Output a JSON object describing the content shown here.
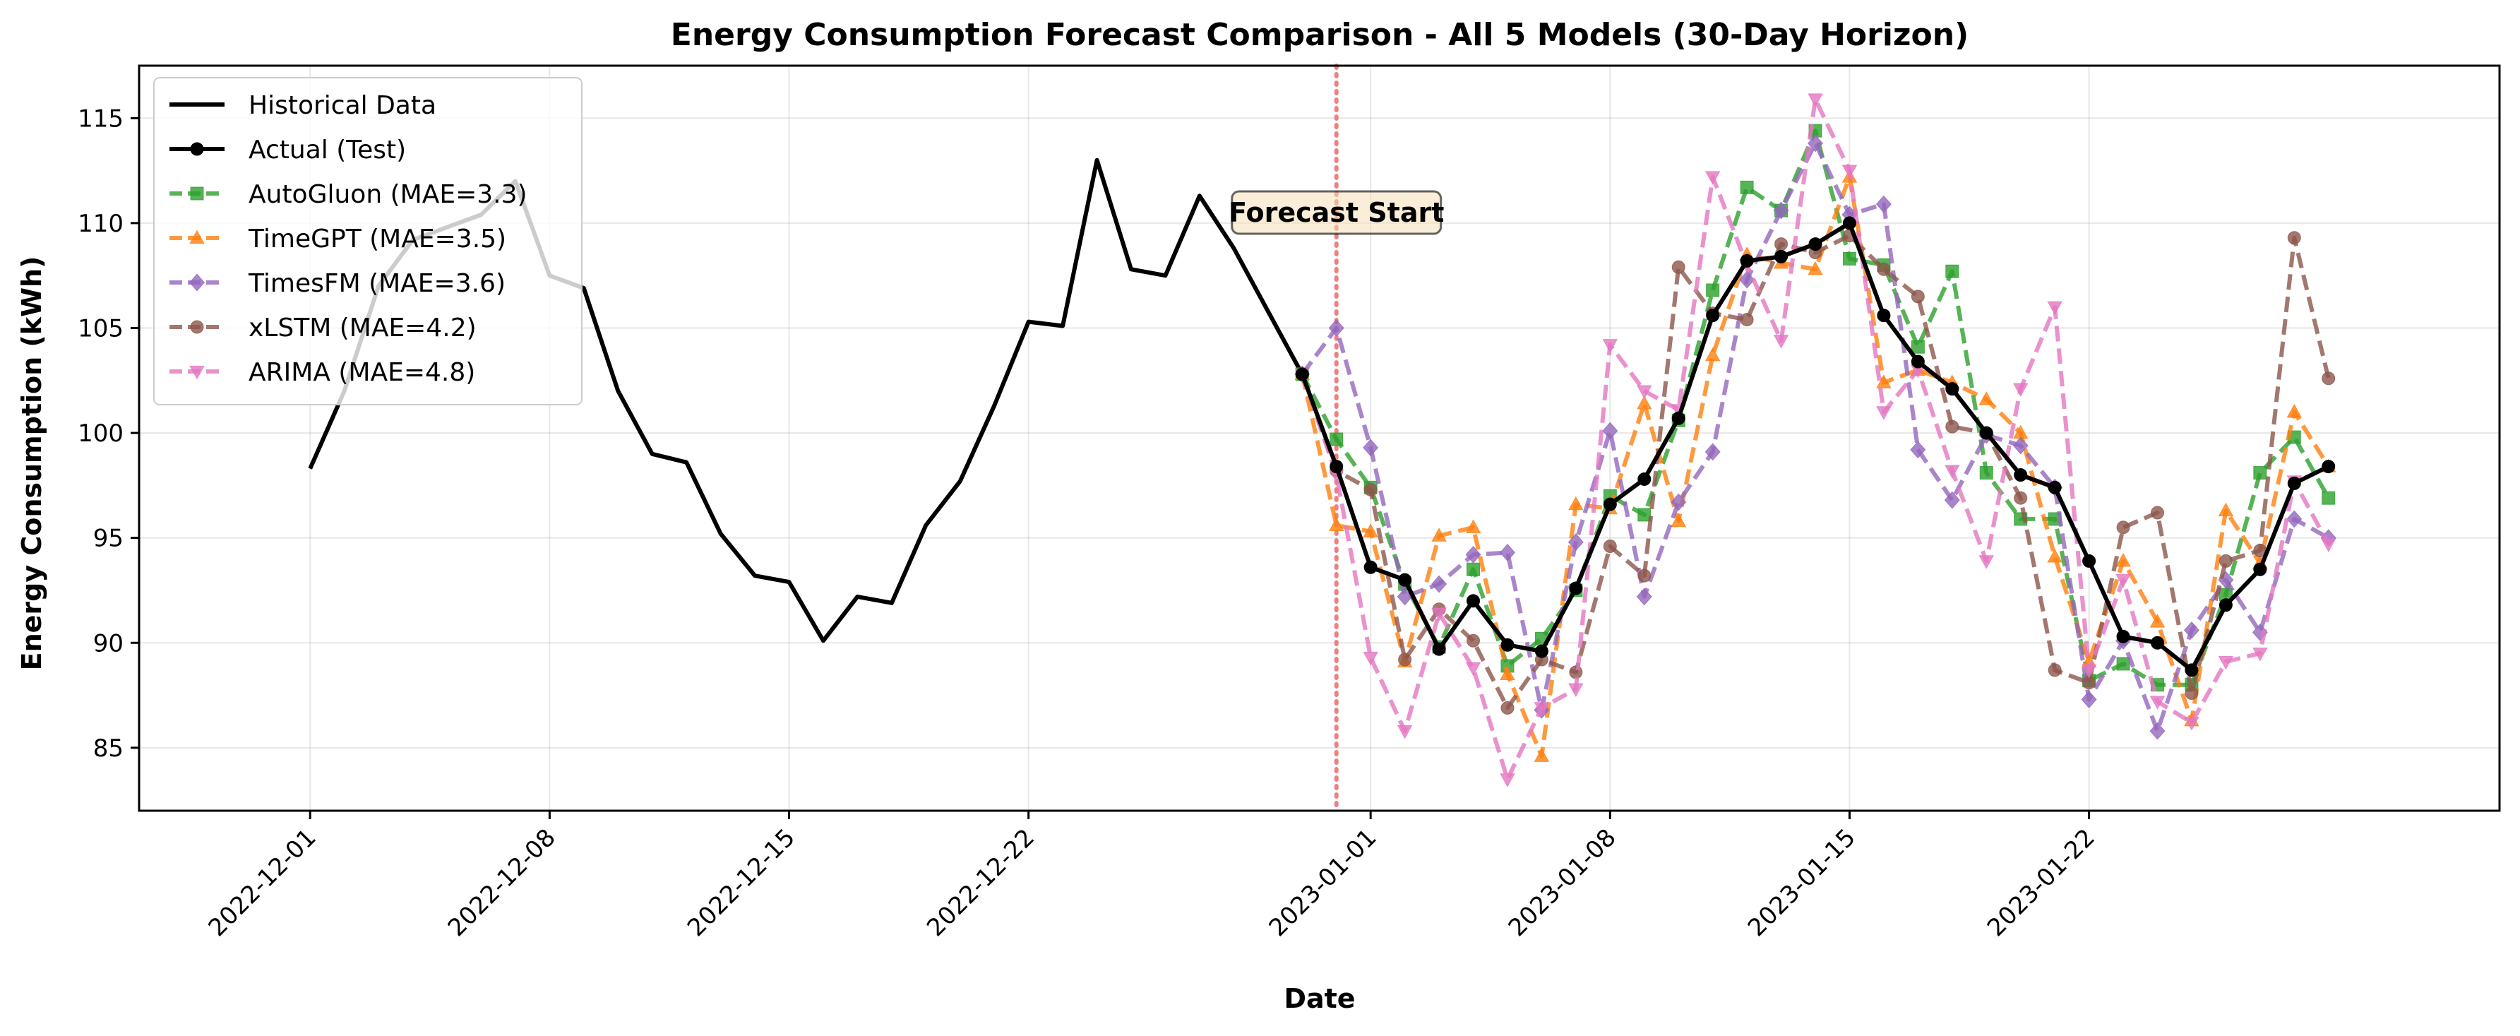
{
  "chart_data": {
    "type": "line",
    "title": "Energy Consumption Forecast Comparison - All 5 Models (30-Day Horizon)",
    "xlabel": "Date",
    "ylabel": "Energy Consumption (kWh)",
    "x_range": [
      "2022-11-26",
      "2023-02-03"
    ],
    "ylim": [
      82,
      117.5
    ],
    "y_ticks": [
      85,
      90,
      95,
      100,
      105,
      110,
      115
    ],
    "x_ticks": [
      "2022-12-01",
      "2022-12-08",
      "2022-12-15",
      "2022-12-22",
      "2023-01-01",
      "2023-01-08",
      "2023-01-15",
      "2023-01-22"
    ],
    "grid": true,
    "legend_position": "top-left",
    "annotation": {
      "text": "Forecast Start",
      "x": "2022-12-31",
      "y": 110.5
    },
    "forecast_start": "2022-12-31",
    "historical": {
      "name": "Historical Data",
      "color": "#000000",
      "start": "2022-12-01",
      "values": [
        98.3,
        102.0,
        107.0,
        109.2,
        109.8,
        110.4,
        112.0,
        107.5,
        106.9,
        102.0,
        99.0,
        98.6,
        95.2,
        93.2,
        92.9,
        90.1,
        92.2,
        91.9,
        95.6,
        97.7,
        101.3,
        105.3,
        105.1,
        113.0,
        107.8,
        107.5,
        111.3,
        108.8,
        105.8,
        102.8
      ]
    },
    "forecast_x": [
      "2022-12-30",
      "2022-12-31",
      "2023-01-01",
      "2023-01-02",
      "2023-01-03",
      "2023-01-04",
      "2023-01-05",
      "2023-01-06",
      "2023-01-07",
      "2023-01-08",
      "2023-01-09",
      "2023-01-10",
      "2023-01-11",
      "2023-01-12",
      "2023-01-13",
      "2023-01-14",
      "2023-01-15",
      "2023-01-16",
      "2023-01-17",
      "2023-01-18",
      "2023-01-19",
      "2023-01-20",
      "2023-01-21",
      "2023-01-22",
      "2023-01-23",
      "2023-01-24",
      "2023-01-25",
      "2023-01-26",
      "2023-01-27",
      "2023-01-28",
      "2023-01-29"
    ],
    "series": [
      {
        "name": "Actual (Test)",
        "color": "#000000",
        "marker": "circle",
        "dashed": false,
        "values": [
          102.8,
          98.4,
          93.6,
          93.0,
          89.7,
          92.0,
          89.9,
          89.6,
          92.6,
          96.6,
          97.8,
          100.7,
          105.6,
          108.2,
          108.4,
          109.0,
          110.0,
          105.6,
          103.4,
          102.1,
          100.0,
          98.0,
          97.4,
          93.9,
          90.3,
          90.0,
          88.7,
          91.8,
          93.5,
          97.6,
          98.4
        ]
      },
      {
        "name": "AutoGluon (MAE=3.3)",
        "color": "#2ca02c",
        "marker": "square",
        "dashed": true,
        "values": [
          102.8,
          99.7,
          97.4,
          92.8,
          89.8,
          93.5,
          88.9,
          90.2,
          92.5,
          97.0,
          96.1,
          100.6,
          106.8,
          111.7,
          110.6,
          114.4,
          108.3,
          108.0,
          104.1,
          107.7,
          98.1,
          95.9,
          95.9,
          88.2,
          89.0,
          88.0,
          88.0,
          92.3,
          98.1,
          99.8,
          96.9
        ]
      },
      {
        "name": "TimeGPT (MAE=3.5)",
        "color": "#ff7f0e",
        "marker": "triangle-up",
        "dashed": true,
        "values": [
          102.8,
          95.6,
          95.3,
          89.1,
          95.1,
          95.5,
          88.5,
          84.6,
          96.6,
          96.4,
          101.4,
          95.8,
          103.7,
          108.5,
          108.1,
          107.8,
          112.2,
          102.4,
          103.0,
          102.4,
          101.6,
          100.0,
          94.1,
          89.1,
          93.9,
          91.0,
          86.3,
          96.3,
          93.8,
          101.0,
          98.4
        ]
      },
      {
        "name": "TimesFM (MAE=3.6)",
        "color": "#9467bd",
        "marker": "diamond",
        "dashed": true,
        "values": [
          102.8,
          105.0,
          99.3,
          92.2,
          92.8,
          94.2,
          94.3,
          86.8,
          94.8,
          100.1,
          92.2,
          96.7,
          99.1,
          107.3,
          110.6,
          113.8,
          110.4,
          110.9,
          99.2,
          96.8,
          99.9,
          99.4,
          97.4,
          87.3,
          90.1,
          85.8,
          90.6,
          93.0,
          90.5,
          95.9,
          95.0
        ]
      },
      {
        "name": "xLSTM (MAE=4.2)",
        "color": "#8c564b",
        "marker": "circle",
        "dashed": true,
        "values": [
          102.8,
          98.2,
          97.3,
          89.2,
          91.6,
          90.1,
          86.9,
          89.2,
          88.6,
          94.6,
          93.2,
          107.9,
          105.7,
          105.4,
          109.0,
          108.6,
          109.4,
          107.8,
          106.5,
          100.3,
          100.0,
          96.9,
          88.7,
          88.1,
          95.5,
          96.2,
          87.6,
          93.9,
          94.4,
          109.3,
          102.6
        ]
      },
      {
        "name": "ARIMA (MAE=4.8)",
        "color": "#e377c2",
        "marker": "triangle-down",
        "dashed": true,
        "values": [
          102.8,
          98.0,
          89.3,
          85.8,
          91.4,
          88.8,
          83.5,
          86.9,
          87.8,
          104.2,
          102.0,
          101.1,
          112.2,
          108.0,
          104.4,
          115.9,
          112.5,
          101.0,
          103.0,
          98.2,
          93.9,
          102.1,
          106.0,
          88.7,
          93.0,
          87.2,
          86.2,
          89.1,
          89.5,
          97.7,
          94.7
        ]
      }
    ]
  }
}
